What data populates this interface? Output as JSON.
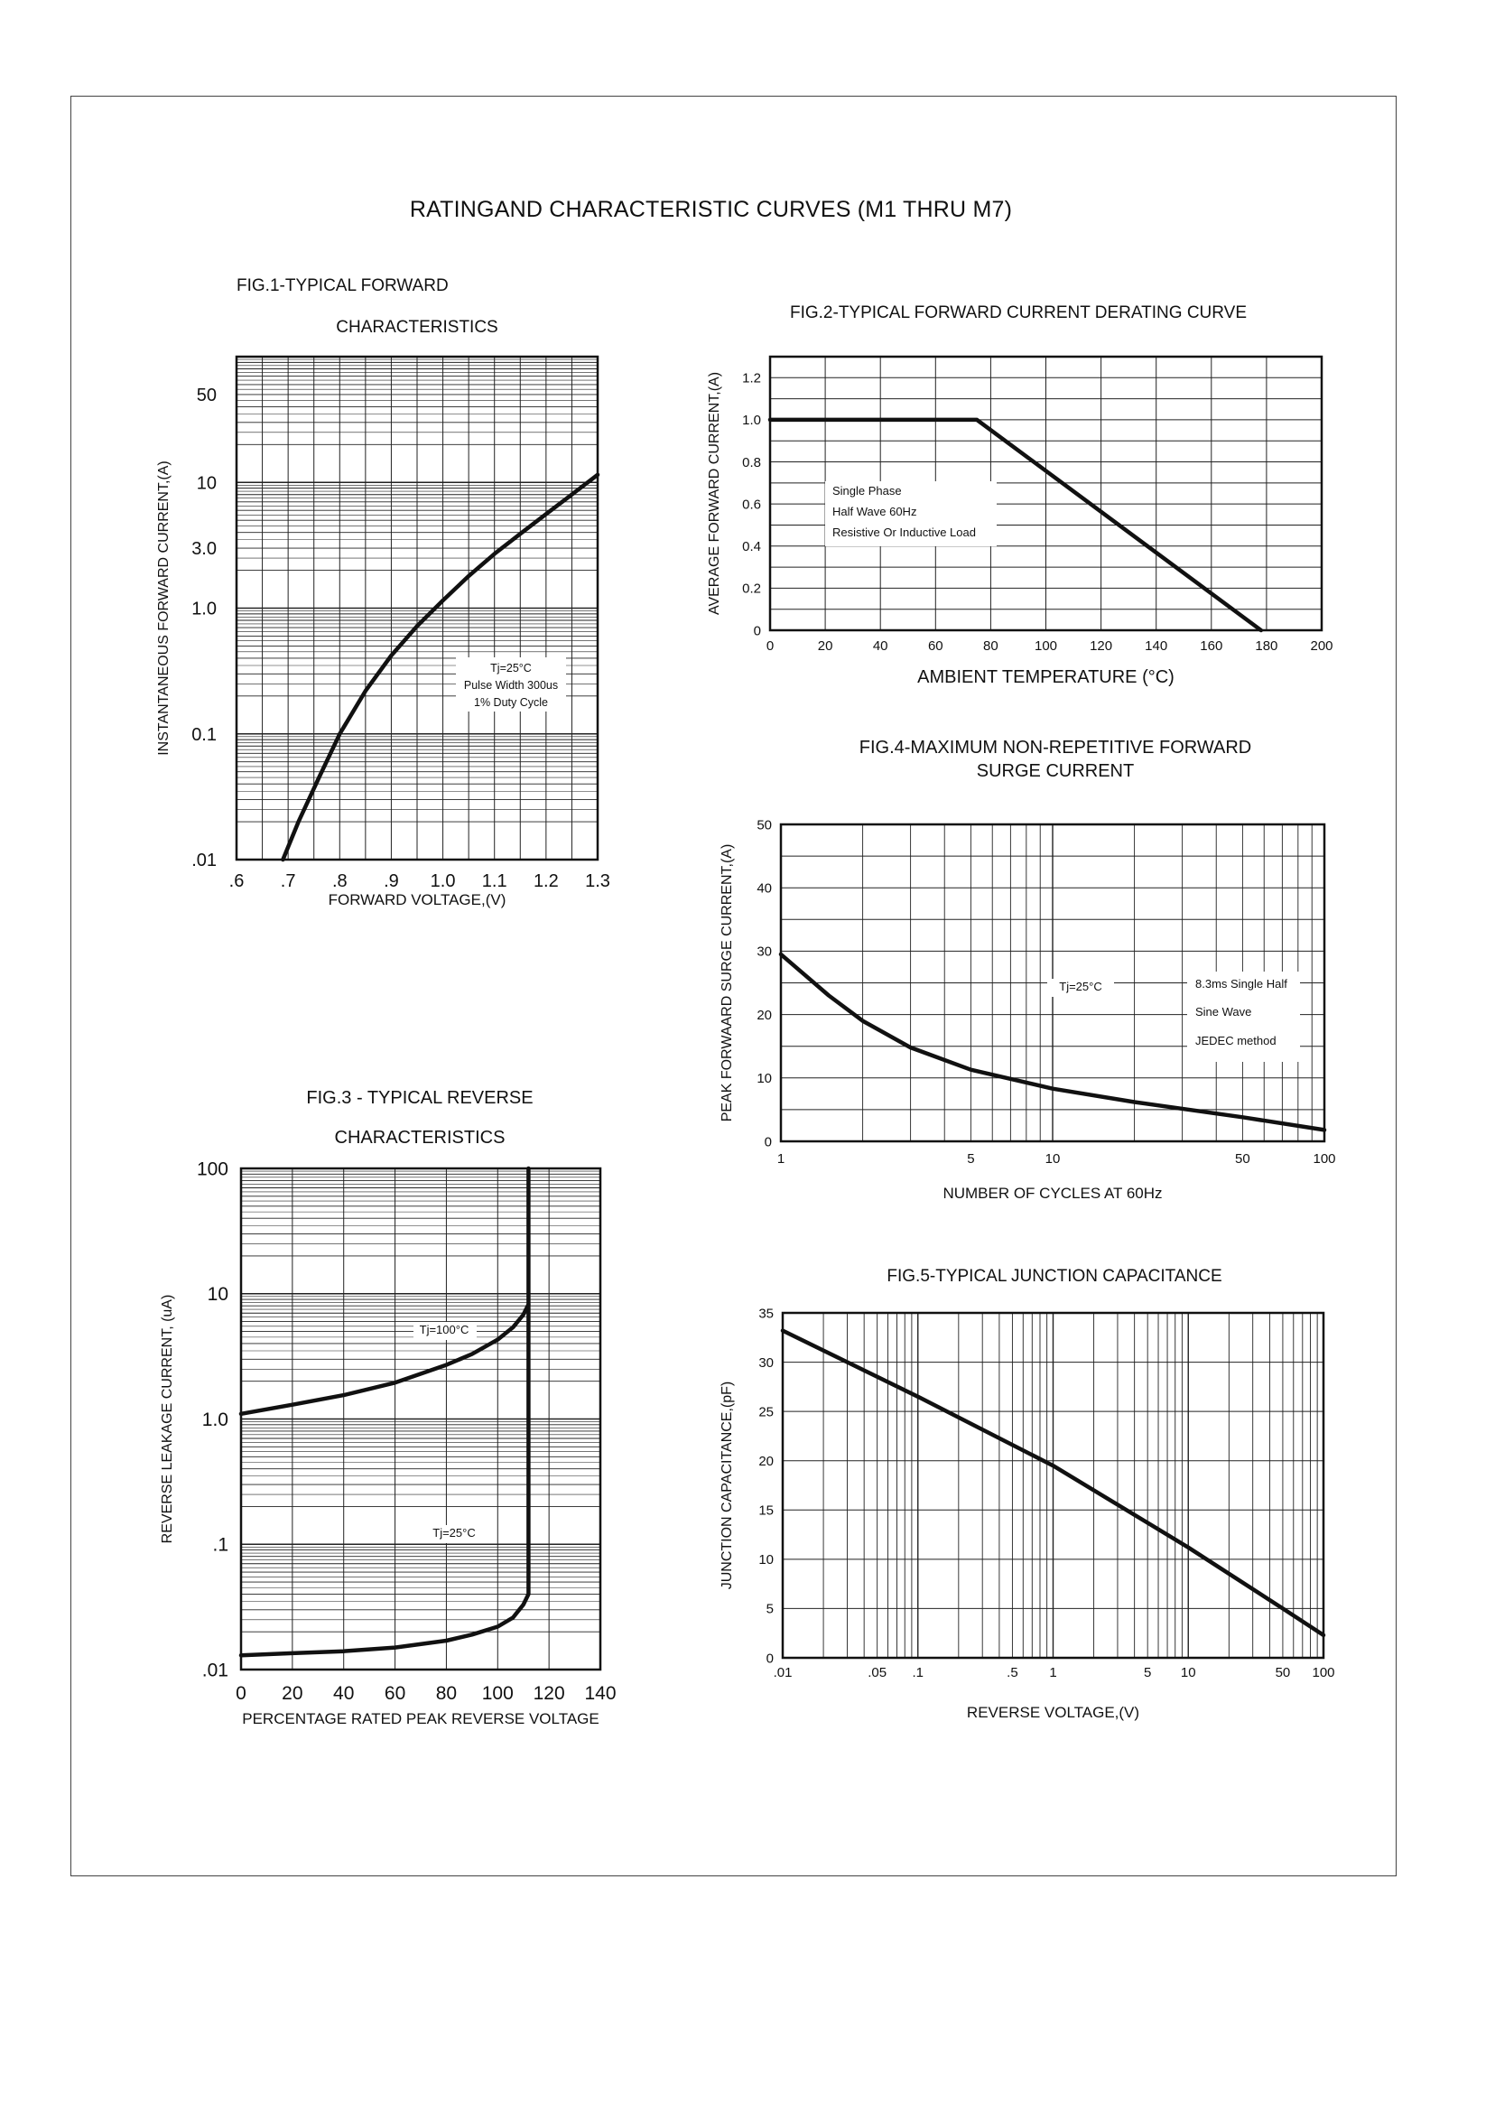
{
  "page": {
    "title": "RATINGAND CHARACTERISTIC CURVES (M1 THRU M7)"
  },
  "chart_data": [
    {
      "id": "fig1",
      "type": "line",
      "title_lines": [
        "FIG.1-TYPICAL FORWARD",
        "CHARACTERISTICS"
      ],
      "xlabel": "FORWARD VOLTAGE,(V)",
      "ylabel": "INSTANTANEOUS FORWARD CURRENT,(A)",
      "x_scale": "linear",
      "y_scale": "log",
      "xlim": [
        0.6,
        1.3
      ],
      "ylim": [
        0.01,
        100
      ],
      "x_ticks": [
        0.6,
        0.7,
        0.8,
        0.9,
        1.0,
        1.1,
        1.2,
        1.3
      ],
      "x_tick_labels": [
        ".6",
        ".7",
        ".8",
        ".9",
        "1.0",
        "1.1",
        "1.2",
        "1.3"
      ],
      "y_ticks": [
        0.01,
        0.1,
        1,
        3,
        10,
        50
      ],
      "y_tick_labels": [
        ".01",
        "0.1",
        "1.0",
        "3.0",
        "10",
        "50"
      ],
      "grid": true,
      "annotation_lines": [
        "Tj=25°C",
        "Pulse Width 300us",
        "1% Duty Cycle"
      ],
      "series": [
        {
          "x": [
            0.69,
            0.72,
            0.76,
            0.8,
            0.85,
            0.9,
            0.95,
            1.0,
            1.05,
            1.1,
            1.15,
            1.2,
            1.25,
            1.3
          ],
          "y": [
            0.01,
            0.02,
            0.045,
            0.1,
            0.22,
            0.42,
            0.72,
            1.15,
            1.8,
            2.7,
            3.9,
            5.6,
            8.0,
            11.5
          ]
        }
      ]
    },
    {
      "id": "fig2",
      "type": "line",
      "title": "FIG.2-TYPICAL FORWARD CURRENT DERATING CURVE",
      "xlabel": "AMBIENT TEMPERATURE (°C)",
      "ylabel": "AVERAGE FORWARD CURRENT,(A)",
      "x_scale": "linear",
      "y_scale": "linear",
      "xlim": [
        0,
        200
      ],
      "ylim": [
        0,
        1.3
      ],
      "x_ticks": [
        0,
        20,
        40,
        60,
        80,
        100,
        120,
        140,
        160,
        180,
        200
      ],
      "x_tick_labels": [
        "0",
        "20",
        "40",
        "60",
        "80",
        "100",
        "120",
        "140",
        "160",
        "180",
        "200"
      ],
      "y_ticks": [
        0,
        0.2,
        0.4,
        0.6,
        0.8,
        1.0,
        1.2
      ],
      "y_tick_labels": [
        "0",
        "0.2",
        "0.4",
        "0.6",
        "0.8",
        "1.0",
        "1.2"
      ],
      "grid": true,
      "annotation_lines": [
        "Single Phase",
        "Half Wave 60Hz",
        "Resistive Or Inductive Load"
      ],
      "series": [
        {
          "x": [
            0,
            75,
            178
          ],
          "y": [
            1.0,
            1.0,
            0
          ]
        }
      ]
    },
    {
      "id": "fig3",
      "type": "line",
      "title_lines": [
        "FIG.3 - TYPICAL REVERSE",
        "CHARACTERISTICS"
      ],
      "xlabel": "PERCENTAGE RATED PEAK REVERSE VOLTAGE",
      "ylabel": "REVERSE LEAKAGE CURRENT, (uA)",
      "x_scale": "linear",
      "y_scale": "log",
      "xlim": [
        0,
        140
      ],
      "ylim": [
        0.01,
        100
      ],
      "x_ticks": [
        0,
        20,
        40,
        60,
        80,
        100,
        120,
        140
      ],
      "x_tick_labels": [
        "0",
        "20",
        "40",
        "60",
        "80",
        "100",
        "120",
        "140"
      ],
      "y_ticks": [
        0.01,
        0.1,
        1,
        10,
        100
      ],
      "y_tick_labels": [
        ".01",
        ".1",
        "1.0",
        "10",
        "100"
      ],
      "grid": true,
      "series": [
        {
          "name": "Tj=100°C",
          "x": [
            0,
            20,
            40,
            60,
            80,
            90,
            100,
            106,
            110,
            112
          ],
          "y": [
            1.1,
            1.3,
            1.55,
            1.95,
            2.7,
            3.3,
            4.3,
            5.4,
            6.8,
            8.2
          ]
        },
        {
          "name": "Tj=25°C",
          "x": [
            0,
            20,
            40,
            60,
            80,
            90,
            100,
            106,
            110,
            112,
            112,
            112
          ],
          "y": [
            0.013,
            0.0135,
            0.014,
            0.015,
            0.017,
            0.019,
            0.022,
            0.026,
            0.033,
            0.04,
            10,
            100
          ]
        }
      ]
    },
    {
      "id": "fig4",
      "type": "line",
      "title_lines": [
        "FIG.4-MAXIMUM NON-REPETITIVE FORWARD",
        "SURGE CURRENT"
      ],
      "xlabel": "NUMBER OF CYCLES AT 60Hz",
      "ylabel": "PEAK FORWAARD SURGE CURRENT,(A)",
      "x_scale": "log",
      "y_scale": "linear",
      "xlim": [
        1,
        100
      ],
      "ylim": [
        0,
        50
      ],
      "x_ticks": [
        1,
        5,
        10,
        50,
        100
      ],
      "x_tick_labels": [
        "1",
        "5",
        "10",
        "50",
        "100"
      ],
      "y_ticks": [
        0,
        10,
        20,
        30,
        40,
        50
      ],
      "y_tick_labels": [
        "0",
        "10",
        "20",
        "30",
        "40",
        "50"
      ],
      "grid": true,
      "annotation_lines": [
        "Tj=25°C"
      ],
      "legend_lines": [
        "8.3ms Single Half",
        "Sine Wave",
        "JEDEC method"
      ],
      "series": [
        {
          "x": [
            1,
            1.5,
            2,
            3,
            5,
            10,
            20,
            50,
            100
          ],
          "y": [
            29.5,
            23,
            19,
            14.8,
            11.3,
            8.3,
            6.2,
            3.8,
            1.8
          ]
        }
      ]
    },
    {
      "id": "fig5",
      "type": "line",
      "title": "FIG.5-TYPICAL JUNCTION CAPACITANCE",
      "xlabel": "REVERSE VOLTAGE,(V)",
      "ylabel": "JUNCTION CAPACITANCE,(pF)",
      "x_scale": "log",
      "y_scale": "linear",
      "xlim": [
        0.01,
        100
      ],
      "ylim": [
        0,
        35
      ],
      "x_ticks": [
        0.01,
        0.05,
        0.1,
        0.5,
        1,
        5,
        10,
        50,
        100
      ],
      "x_tick_labels": [
        ".01",
        ".05",
        ".1",
        ".5",
        "1",
        "5",
        "10",
        "50",
        "100"
      ],
      "y_ticks": [
        0,
        5,
        10,
        15,
        20,
        25,
        30,
        35
      ],
      "y_tick_labels": [
        "0",
        "5",
        "10",
        "15",
        "20",
        "25",
        "30",
        "35"
      ],
      "grid": true,
      "series": [
        {
          "x": [
            0.01,
            0.1,
            1,
            10,
            50,
            100
          ],
          "y": [
            33.2,
            26.5,
            19.5,
            11.2,
            5.0,
            2.3
          ]
        }
      ]
    }
  ]
}
